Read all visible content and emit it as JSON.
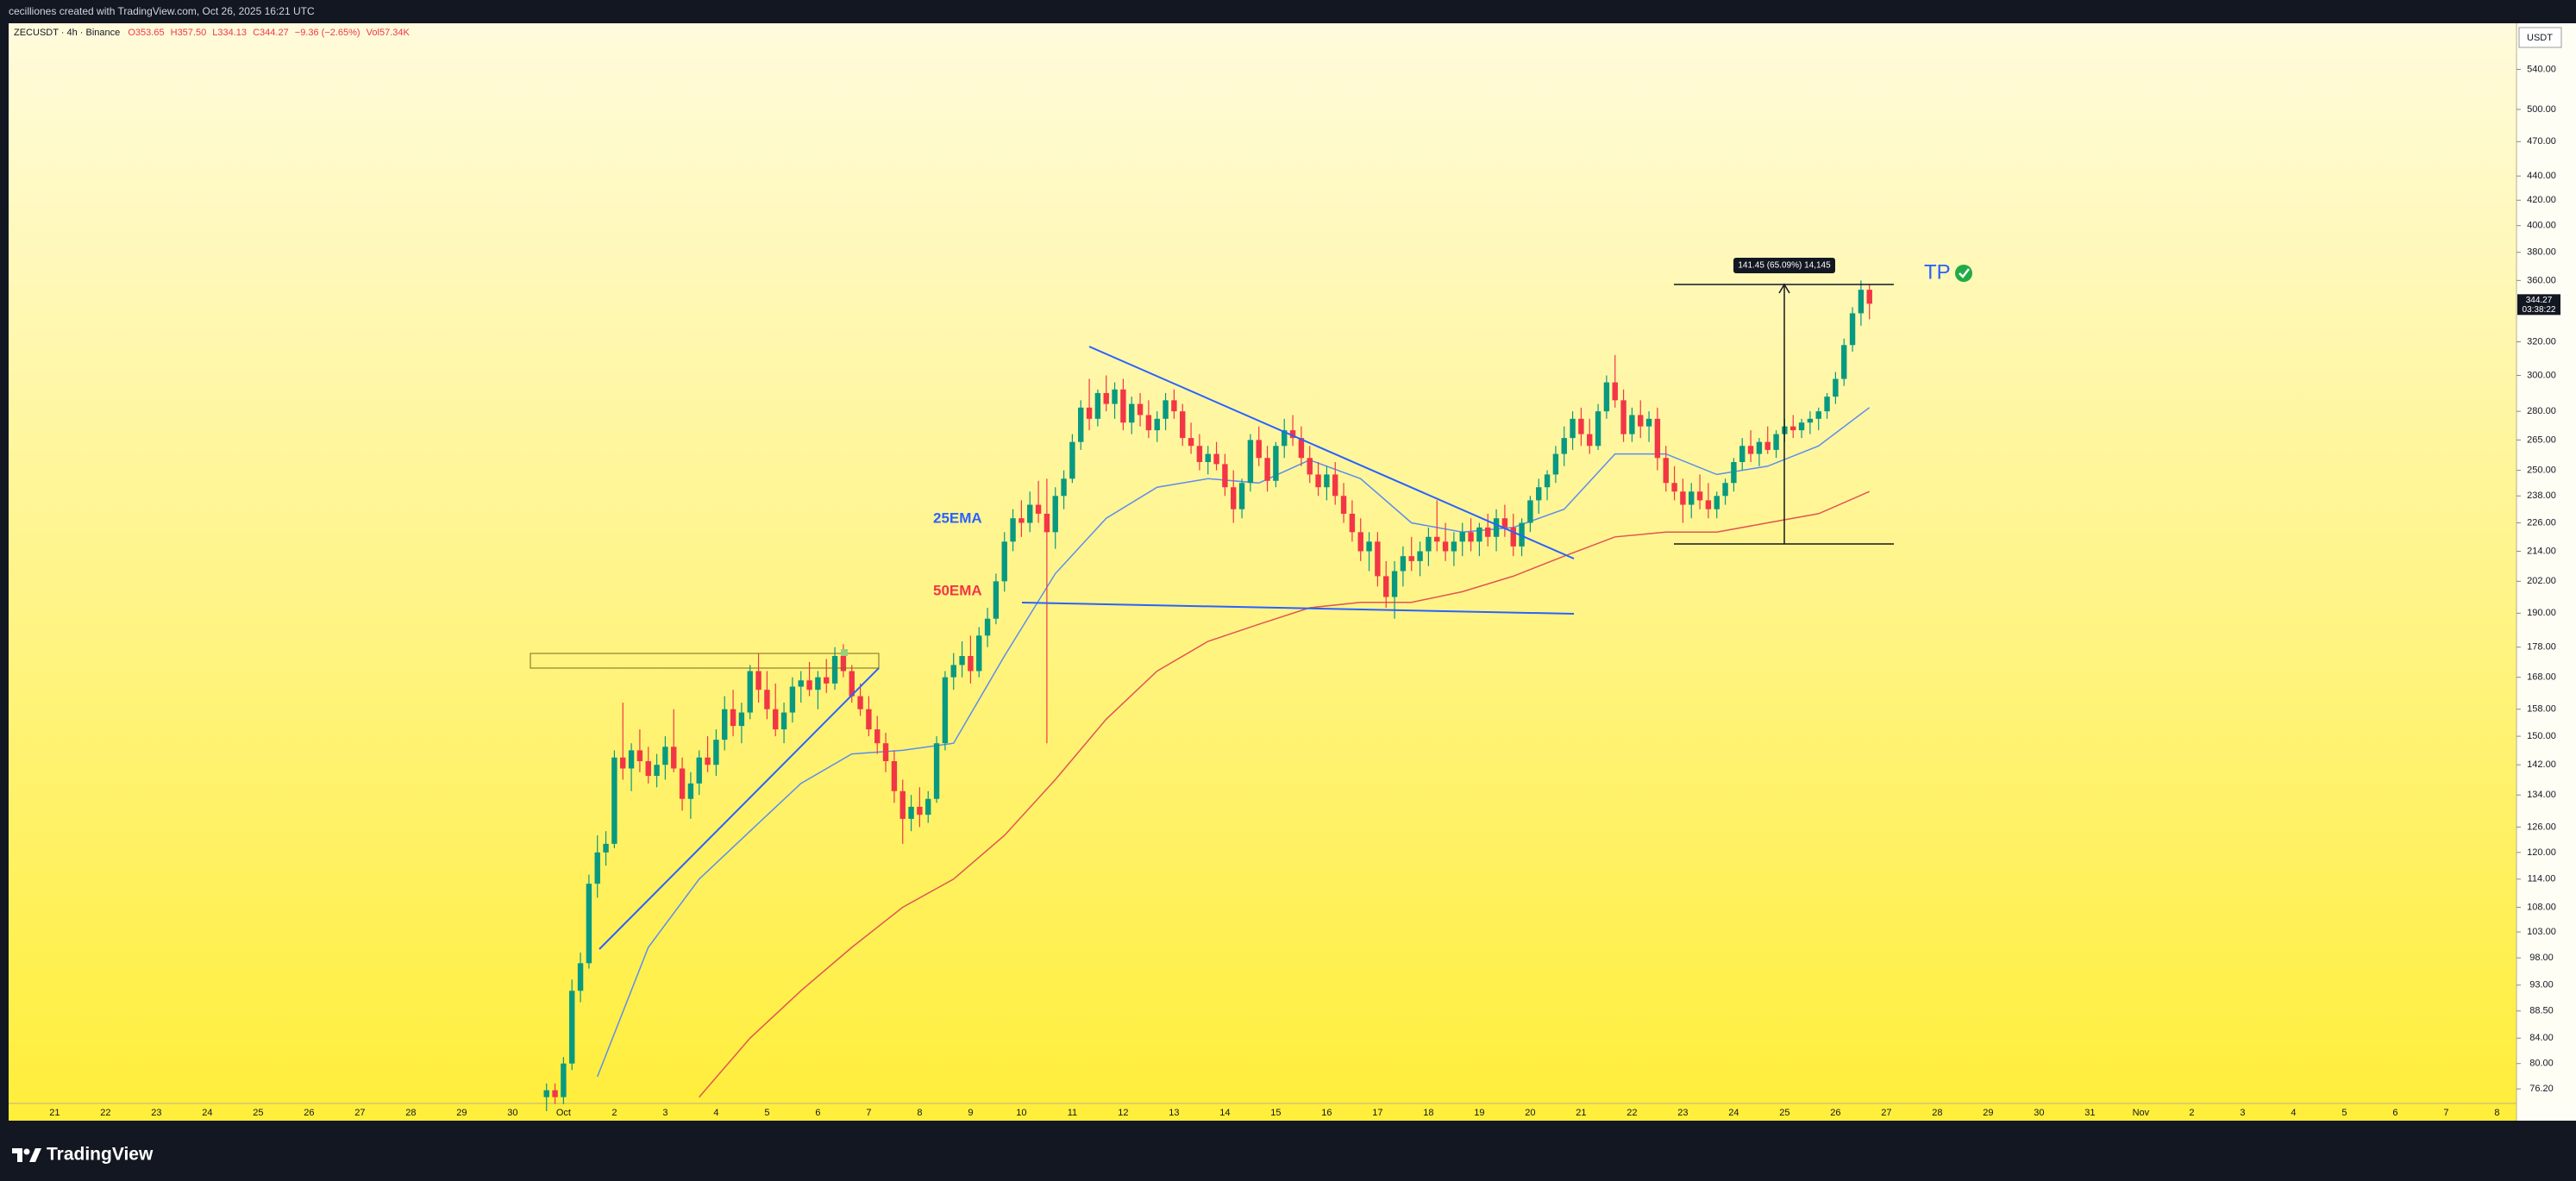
{
  "chart_data": {
    "type": "candlestick",
    "title": "cecilliones created with TradingView.com, Oct 26, 2025 16:21 UTC",
    "header": {
      "symbol": "ZECUSDT · 4h · Binance",
      "ohlc": [
        "O353.65",
        "H357.50",
        "L334.13",
        "C344.27"
      ],
      "change": "−9.36 (−2.65%)",
      "volume": "Vol57.34K"
    },
    "currency": "USDT",
    "brand": "TradingView",
    "last_price_label": "344.27",
    "countdown": "03:38:22",
    "measure_label": "141.45 (65.09%) 14,145",
    "target_label": "TP",
    "log_scale": true,
    "up_color": "#089981",
    "down_color": "#f23645",
    "ylim": [
      74.1,
      590
    ],
    "yticks": [
      {
        "value": 76.2,
        "label": "76.20"
      },
      {
        "value": 80,
        "label": "80.00"
      },
      {
        "value": 84,
        "label": "84.00"
      },
      {
        "value": 88.5,
        "label": "88.50"
      },
      {
        "value": 93,
        "label": "93.00"
      },
      {
        "value": 98,
        "label": "98.00"
      },
      {
        "value": 103,
        "label": "103.00"
      },
      {
        "value": 108,
        "label": "108.00"
      },
      {
        "value": 114,
        "label": "114.00"
      },
      {
        "value": 120,
        "label": "120.00"
      },
      {
        "value": 126,
        "label": "126.00"
      },
      {
        "value": 134,
        "label": "134.00"
      },
      {
        "value": 142,
        "label": "142.00"
      },
      {
        "value": 150,
        "label": "150.00"
      },
      {
        "value": 158,
        "label": "158.00"
      },
      {
        "value": 168,
        "label": "168.00"
      },
      {
        "value": 178,
        "label": "178.00"
      },
      {
        "value": 190,
        "label": "190.00"
      },
      {
        "value": 202,
        "label": "202.00"
      },
      {
        "value": 214,
        "label": "214.00"
      },
      {
        "value": 226,
        "label": "226.00"
      },
      {
        "value": 238,
        "label": "238.00"
      },
      {
        "value": 250,
        "label": "250.00"
      },
      {
        "value": 265,
        "label": "265.00"
      },
      {
        "value": 280,
        "label": "280.00"
      },
      {
        "value": 300,
        "label": "300.00"
      },
      {
        "value": 320,
        "label": "320.00"
      },
      {
        "value": 360,
        "label": "360.00"
      },
      {
        "value": 380,
        "label": "380.00"
      },
      {
        "value": 400,
        "label": "400.00"
      },
      {
        "value": 420,
        "label": "420.00"
      },
      {
        "value": 440,
        "label": "440.00"
      },
      {
        "value": 470,
        "label": "470.00"
      },
      {
        "value": 500,
        "label": "500.00"
      },
      {
        "value": 540,
        "label": "540.00"
      }
    ],
    "x_labels": [
      "21",
      "22",
      "23",
      "24",
      "25",
      "26",
      "27",
      "28",
      "29",
      "30",
      "Oct",
      "2",
      "3",
      "4",
      "5",
      "6",
      "7",
      "8",
      "9",
      "10",
      "11",
      "12",
      "13",
      "14",
      "15",
      "16",
      "17",
      "18",
      "19",
      "20",
      "21",
      "22",
      "23",
      "24",
      "25",
      "26",
      "27",
      "28",
      "29",
      "30",
      "31",
      "Nov",
      "2",
      "3",
      "4",
      "5",
      "6",
      "7",
      "8"
    ],
    "ohlc": [
      [
        75,
        77,
        73,
        76
      ],
      [
        76,
        77,
        74,
        75
      ],
      [
        75,
        81,
        74,
        80
      ],
      [
        80,
        94,
        79,
        92
      ],
      [
        92,
        99,
        90,
        97
      ],
      [
        97,
        115,
        96,
        113
      ],
      [
        113,
        124,
        110,
        120
      ],
      [
        120,
        125,
        117,
        122
      ],
      [
        122,
        146,
        121,
        144
      ],
      [
        144,
        160,
        138,
        141
      ],
      [
        141,
        148,
        135,
        146
      ],
      [
        146,
        152,
        140,
        143
      ],
      [
        143,
        147,
        137,
        139
      ],
      [
        139,
        145,
        136,
        142
      ],
      [
        142,
        150,
        138,
        147
      ],
      [
        147,
        158,
        140,
        141
      ],
      [
        141,
        144,
        130,
        133
      ],
      [
        133,
        140,
        128,
        137
      ],
      [
        137,
        146,
        134,
        144
      ],
      [
        144,
        150,
        140,
        142
      ],
      [
        142,
        152,
        139,
        149
      ],
      [
        149,
        162,
        146,
        158
      ],
      [
        158,
        164,
        150,
        153
      ],
      [
        153,
        160,
        148,
        157
      ],
      [
        157,
        172,
        155,
        170
      ],
      [
        170,
        176,
        160,
        164
      ],
      [
        164,
        170,
        155,
        158
      ],
      [
        158,
        166,
        150,
        152
      ],
      [
        152,
        160,
        148,
        157
      ],
      [
        157,
        168,
        154,
        165
      ],
      [
        165,
        170,
        160,
        167
      ],
      [
        167,
        173,
        162,
        164
      ],
      [
        164,
        170,
        158,
        168
      ],
      [
        168,
        174,
        163,
        166
      ],
      [
        166,
        178,
        164,
        175
      ],
      [
        175,
        179,
        168,
        170
      ],
      [
        170,
        172,
        160,
        162
      ],
      [
        162,
        166,
        156,
        158
      ],
      [
        158,
        162,
        150,
        152
      ],
      [
        152,
        156,
        145,
        148
      ],
      [
        148,
        151,
        140,
        143
      ],
      [
        143,
        146,
        132,
        135
      ],
      [
        135,
        138,
        122,
        128
      ],
      [
        128,
        134,
        125,
        131
      ],
      [
        131,
        136,
        126,
        129
      ],
      [
        129,
        135,
        127,
        133
      ],
      [
        133,
        150,
        132,
        148
      ],
      [
        148,
        170,
        146,
        168
      ],
      [
        168,
        176,
        164,
        172
      ],
      [
        172,
        180,
        168,
        175
      ],
      [
        175,
        182,
        166,
        170
      ],
      [
        170,
        185,
        168,
        182
      ],
      [
        182,
        192,
        178,
        188
      ],
      [
        188,
        205,
        186,
        202
      ],
      [
        202,
        222,
        198,
        218
      ],
      [
        218,
        232,
        214,
        228
      ],
      [
        228,
        236,
        220,
        226
      ],
      [
        226,
        240,
        222,
        234
      ],
      [
        234,
        245,
        226,
        230
      ],
      [
        230,
        246,
        148,
        222
      ],
      [
        222,
        242,
        215,
        238
      ],
      [
        238,
        250,
        232,
        246
      ],
      [
        246,
        268,
        244,
        264
      ],
      [
        264,
        286,
        260,
        282
      ],
      [
        282,
        298,
        270,
        276
      ],
      [
        276,
        292,
        272,
        290
      ],
      [
        290,
        300,
        280,
        284
      ],
      [
        284,
        296,
        276,
        292
      ],
      [
        292,
        298,
        270,
        274
      ],
      [
        274,
        288,
        268,
        284
      ],
      [
        284,
        290,
        272,
        278
      ],
      [
        278,
        286,
        266,
        270
      ],
      [
        270,
        280,
        264,
        276
      ],
      [
        276,
        290,
        270,
        286
      ],
      [
        286,
        292,
        276,
        280
      ],
      [
        280,
        284,
        262,
        266
      ],
      [
        266,
        274,
        258,
        262
      ],
      [
        262,
        268,
        250,
        254
      ],
      [
        254,
        262,
        248,
        258
      ],
      [
        258,
        264,
        250,
        253
      ],
      [
        253,
        258,
        238,
        242
      ],
      [
        242,
        250,
        226,
        232
      ],
      [
        232,
        246,
        228,
        244
      ],
      [
        244,
        268,
        240,
        265
      ],
      [
        265,
        272,
        252,
        256
      ],
      [
        256,
        262,
        240,
        245
      ],
      [
        245,
        264,
        242,
        262
      ],
      [
        262,
        276,
        256,
        270
      ],
      [
        270,
        278,
        262,
        266
      ],
      [
        266,
        272,
        252,
        256
      ],
      [
        256,
        262,
        244,
        248
      ],
      [
        248,
        254,
        238,
        242
      ],
      [
        242,
        252,
        236,
        248
      ],
      [
        248,
        254,
        234,
        238
      ],
      [
        238,
        244,
        226,
        230
      ],
      [
        230,
        236,
        218,
        222
      ],
      [
        222,
        228,
        210,
        214
      ],
      [
        214,
        222,
        206,
        218
      ],
      [
        218,
        222,
        200,
        204
      ],
      [
        204,
        210,
        192,
        196
      ],
      [
        196,
        210,
        188,
        206
      ],
      [
        206,
        216,
        200,
        212
      ],
      [
        212,
        220,
        206,
        210
      ],
      [
        210,
        218,
        204,
        214
      ],
      [
        214,
        224,
        208,
        220
      ],
      [
        220,
        236,
        214,
        218
      ],
      [
        218,
        226,
        210,
        214
      ],
      [
        214,
        222,
        208,
        218
      ],
      [
        218,
        226,
        212,
        222
      ],
      [
        222,
        228,
        214,
        218
      ],
      [
        218,
        226,
        212,
        224
      ],
      [
        224,
        230,
        216,
        220
      ],
      [
        220,
        232,
        214,
        228
      ],
      [
        228,
        234,
        220,
        224
      ],
      [
        224,
        230,
        212,
        216
      ],
      [
        216,
        228,
        212,
        226
      ],
      [
        226,
        238,
        222,
        236
      ],
      [
        236,
        246,
        230,
        242
      ],
      [
        242,
        250,
        236,
        248
      ],
      [
        248,
        262,
        244,
        258
      ],
      [
        258,
        272,
        252,
        266
      ],
      [
        266,
        280,
        260,
        276
      ],
      [
        276,
        282,
        262,
        268
      ],
      [
        268,
        276,
        258,
        262
      ],
      [
        262,
        284,
        260,
        280
      ],
      [
        280,
        300,
        276,
        296
      ],
      [
        296,
        312,
        282,
        286
      ],
      [
        286,
        292,
        264,
        268
      ],
      [
        268,
        282,
        264,
        278
      ],
      [
        278,
        286,
        266,
        272
      ],
      [
        272,
        280,
        264,
        276
      ],
      [
        276,
        282,
        250,
        256
      ],
      [
        256,
        262,
        240,
        244
      ],
      [
        244,
        252,
        236,
        240
      ],
      [
        240,
        246,
        226,
        234
      ],
      [
        234,
        244,
        228,
        240
      ],
      [
        240,
        248,
        232,
        236
      ],
      [
        236,
        244,
        228,
        232
      ],
      [
        232,
        240,
        228,
        238
      ],
      [
        238,
        246,
        234,
        244
      ],
      [
        244,
        256,
        240,
        254
      ],
      [
        254,
        266,
        250,
        262
      ],
      [
        262,
        270,
        254,
        258
      ],
      [
        258,
        266,
        252,
        264
      ],
      [
        264,
        272,
        258,
        260
      ],
      [
        260,
        270,
        256,
        268
      ],
      [
        268,
        276,
        264,
        272
      ],
      [
        272,
        278,
        266,
        270
      ],
      [
        270,
        276,
        266,
        274
      ],
      [
        274,
        280,
        268,
        276
      ],
      [
        276,
        282,
        270,
        280
      ],
      [
        280,
        290,
        276,
        288
      ],
      [
        288,
        302,
        284,
        298
      ],
      [
        298,
        322,
        294,
        318
      ],
      [
        318,
        342,
        314,
        338
      ],
      [
        338,
        360,
        330,
        353.65
      ],
      [
        353.65,
        357.5,
        334.13,
        344.27
      ]
    ],
    "series": [
      {
        "name": "25EMA",
        "color": "#2962ff",
        "line_color": "#5b8def",
        "values": [
          null,
          78,
          100,
          114,
          125,
          137,
          145,
          146,
          148,
          175,
          205,
          228,
          242,
          246,
          244,
          255,
          246,
          226,
          222,
          224,
          232,
          258,
          258,
          248,
          252,
          262,
          282
        ]
      },
      {
        "name": "50EMA",
        "color": "#f23645",
        "line_color": "#e05555",
        "values": [
          null,
          null,
          null,
          75,
          84,
          92,
          100,
          108,
          114,
          124,
          138,
          155,
          170,
          180,
          186,
          192,
          194,
          194,
          198,
          204,
          212,
          220,
          222,
          222,
          226,
          230,
          240
        ]
      }
    ]
  }
}
